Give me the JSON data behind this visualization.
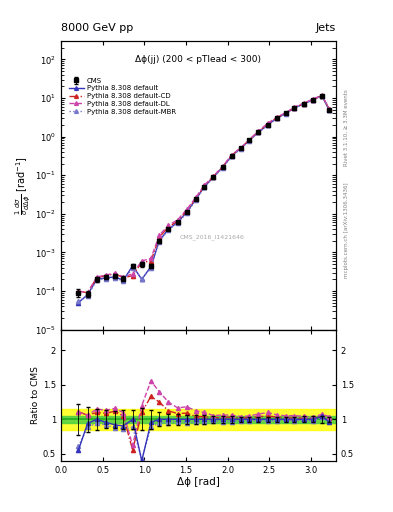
{
  "title_left": "8000 GeV pp",
  "title_right": "Jets",
  "right_label_top": "Rivet 3.1.10, ≥ 3.3M events",
  "right_label_bot": "mcplots.cern.ch [arXiv:1306.3436]",
  "inner_title": "Δϕ(jj) (200 < pTlead < 300)",
  "watermark": "CMS_2016_I1421646",
  "ylabel_main": "$\\frac{1}{\\sigma}\\frac{d\\sigma}{d\\Delta\\phi}$ [rad$^{-1}$]",
  "ylabel_ratio": "Ratio to CMS",
  "xlabel": "Δϕ [rad]",
  "xlim": [
    0.0,
    3.3
  ],
  "ylim_main": [
    1e-05,
    300
  ],
  "ylim_ratio": [
    0.4,
    2.3
  ],
  "cms_x": [
    0.21,
    0.32,
    0.43,
    0.54,
    0.65,
    0.75,
    0.86,
    0.97,
    1.08,
    1.18,
    1.29,
    1.4,
    1.51,
    1.62,
    1.72,
    1.83,
    1.94,
    2.05,
    2.16,
    2.26,
    2.37,
    2.48,
    2.59,
    2.7,
    2.8,
    2.91,
    3.02,
    3.13,
    3.22
  ],
  "cms_y": [
    9e-05,
    8.5e-05,
    0.0002,
    0.00023,
    0.00025,
    0.00021,
    0.00045,
    0.0005,
    0.00045,
    0.002,
    0.004,
    0.006,
    0.011,
    0.024,
    0.05,
    0.09,
    0.16,
    0.32,
    0.5,
    0.8,
    1.3,
    2.0,
    3.0,
    4.0,
    5.5,
    7.0,
    9.0,
    11.0,
    5.0
  ],
  "cms_yerr": [
    2e-05,
    1.5e-05,
    3e-05,
    3e-05,
    3e-05,
    3e-05,
    6e-05,
    8e-05,
    6e-05,
    0.0002,
    0.0003,
    0.0005,
    0.0007,
    0.0015,
    0.003,
    0.005,
    0.008,
    0.015,
    0.02,
    0.03,
    0.05,
    0.08,
    0.1,
    0.15,
    0.2,
    0.3,
    0.4,
    0.5,
    0.2
  ],
  "py_default_y": [
    5e-05,
    8e-05,
    0.0002,
    0.00022,
    0.00023,
    0.00019,
    0.00045,
    0.0002,
    0.00043,
    0.002,
    0.004,
    0.006,
    0.011,
    0.024,
    0.05,
    0.09,
    0.16,
    0.32,
    0.5,
    0.8,
    1.3,
    2.0,
    3.0,
    4.0,
    5.5,
    7.0,
    9.0,
    11.5,
    4.8
  ],
  "py_cd_y": [
    0.0001,
    9e-05,
    0.00022,
    0.00025,
    0.00028,
    0.00022,
    0.00025,
    0.00055,
    0.0006,
    0.0025,
    0.0045,
    0.0065,
    0.012,
    0.025,
    0.052,
    0.092,
    0.165,
    0.33,
    0.51,
    0.82,
    1.35,
    2.1,
    3.1,
    4.1,
    5.6,
    7.1,
    9.1,
    11.5,
    5.1
  ],
  "py_dl_y": [
    0.0001,
    9e-05,
    0.00023,
    0.00026,
    0.00029,
    0.00023,
    0.00028,
    0.0006,
    0.0007,
    0.0028,
    0.005,
    0.007,
    0.013,
    0.027,
    0.055,
    0.095,
    0.17,
    0.34,
    0.52,
    0.84,
    1.4,
    2.2,
    3.2,
    4.2,
    5.8,
    7.3,
    9.3,
    11.8,
    5.2
  ],
  "py_mbr_y": [
    5.5e-05,
    7.5e-05,
    0.00019,
    0.00021,
    0.00022,
    0.00018,
    0.0004,
    0.00021,
    0.0004,
    0.0019,
    0.0038,
    0.0058,
    0.0105,
    0.023,
    0.048,
    0.088,
    0.155,
    0.31,
    0.49,
    0.78,
    1.28,
    1.95,
    2.95,
    3.95,
    5.4,
    6.9,
    8.8,
    11.3,
    4.9
  ],
  "color_default": "#3333bb",
  "color_cd": "#cc2222",
  "color_dl": "#cc44aa",
  "color_mbr": "#7777cc",
  "green_band": 0.05,
  "yellow_band": 0.15
}
